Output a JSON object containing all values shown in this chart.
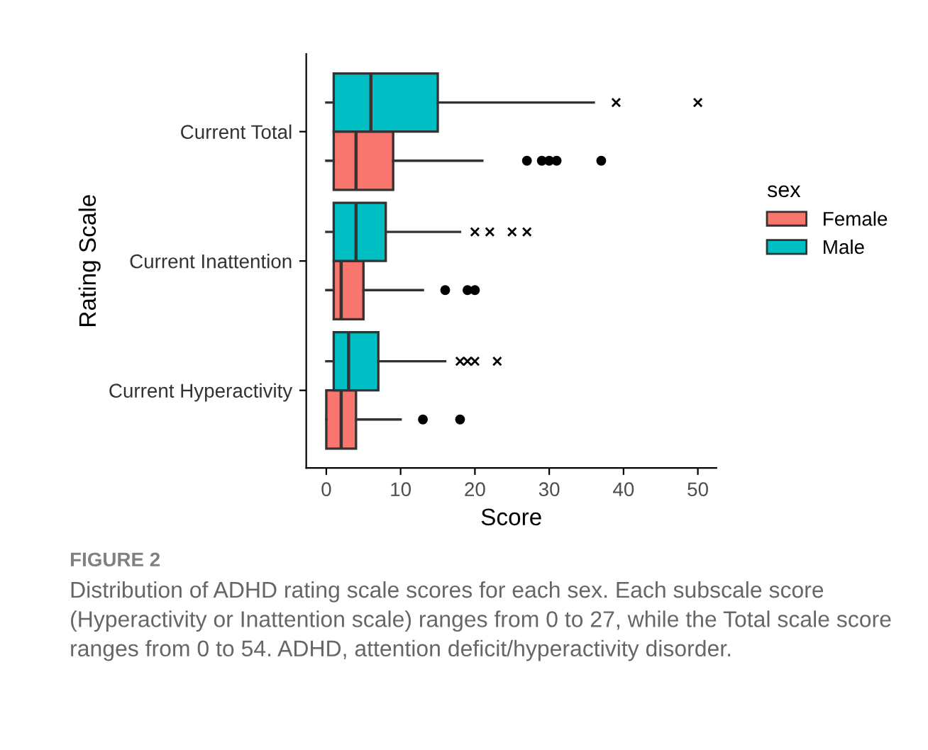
{
  "chart_data": {
    "type": "box",
    "orientation": "horizontal",
    "categories": [
      "Current Total",
      "Current Inattention",
      "Current Hyperactivity"
    ],
    "xlabel": "Score",
    "ylabel": "Rating Scale",
    "legend_title": "sex",
    "legend": "right",
    "grid": false,
    "xlim": [
      -2.7,
      52.5
    ],
    "xticks": [
      0,
      10,
      20,
      30,
      40,
      50
    ],
    "series": [
      {
        "name": "Female",
        "color": "#f8766d",
        "marker": "circle",
        "boxes": [
          {
            "low": 0,
            "q1": 1,
            "median": 4,
            "q3": 9,
            "high": 21,
            "outliers": [
              27,
              29,
              30,
              31,
              37
            ]
          },
          {
            "low": 0,
            "q1": 1,
            "median": 2,
            "q3": 5,
            "high": 13,
            "outliers": [
              16,
              19,
              20
            ]
          },
          {
            "low": 0,
            "q1": 0,
            "median": 2,
            "q3": 4,
            "high": 10,
            "outliers": [
              13,
              18
            ]
          }
        ]
      },
      {
        "name": "Male",
        "color": "#00bfc4",
        "marker": "cross",
        "boxes": [
          {
            "low": 0,
            "q1": 1,
            "median": 6,
            "q3": 15,
            "high": 36,
            "outliers": [
              39,
              50
            ]
          },
          {
            "low": 0,
            "q1": 1,
            "median": 4,
            "q3": 8,
            "high": 18,
            "outliers": [
              20,
              22,
              25,
              27
            ]
          },
          {
            "low": 0,
            "q1": 1,
            "median": 3,
            "q3": 7,
            "high": 16,
            "outliers": [
              18,
              19,
              20,
              23
            ]
          }
        ]
      }
    ],
    "annotations": [
      "FIGURE 2",
      "Distribution of ADHD rating scale scores for each sex. Each subscale score (Hyperactivity or Inattention scale) ranges from 0 to 27, while the Total scale score ranges from 0 to 54. ADHD, attention deficit/hyperactivity disorder."
    ]
  }
}
